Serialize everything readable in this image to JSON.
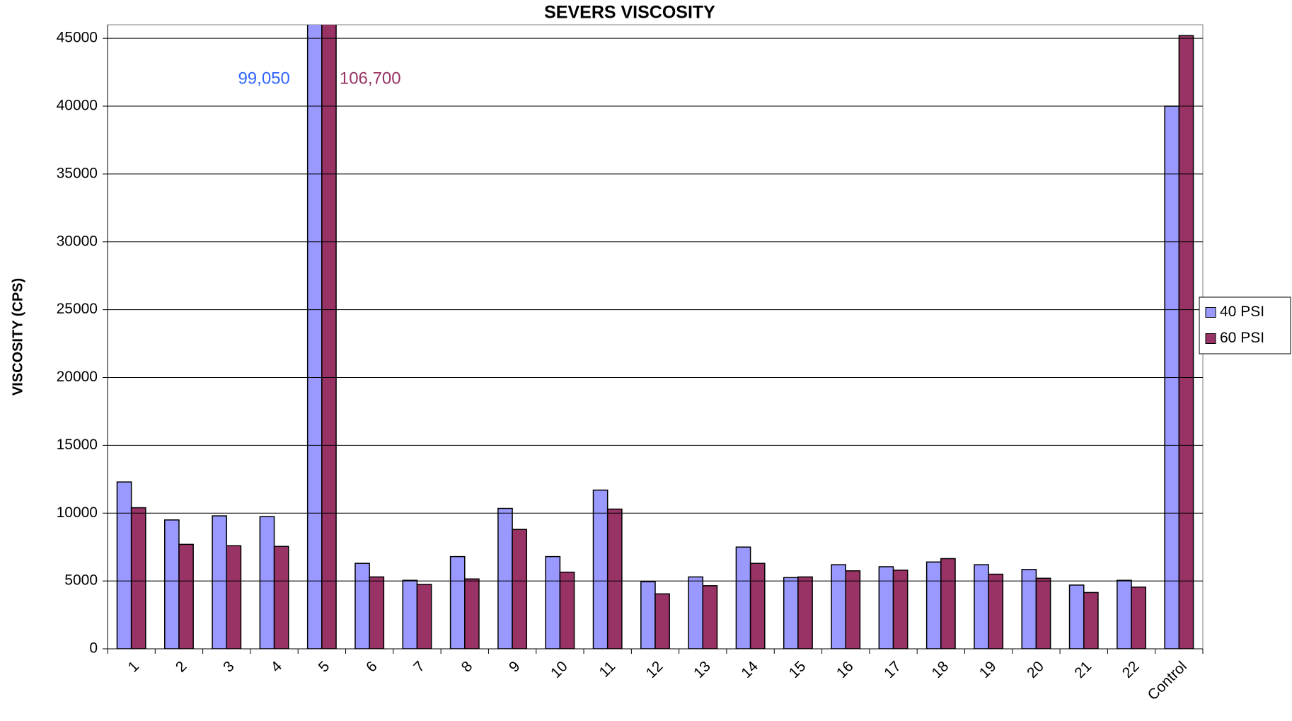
{
  "chart_data": {
    "type": "bar",
    "title": "SEVERS VISCOSITY",
    "y_label": "VISCOSITY (CPS)",
    "categories": [
      "1",
      "2",
      "3",
      "4",
      "5",
      "6",
      "7",
      "8",
      "9",
      "10",
      "11",
      "12",
      "13",
      "14",
      "15",
      "16",
      "17",
      "18",
      "19",
      "20",
      "21",
      "22",
      "Control"
    ],
    "series": [
      {
        "name": "40 PSI",
        "color": "#9999ff",
        "label_color": "#3366ff",
        "values": [
          12300,
          9500,
          9800,
          9750,
          99050,
          6300,
          5050,
          6800,
          10350,
          6800,
          11700,
          4950,
          5300,
          7500,
          5250,
          6200,
          6050,
          6400,
          6200,
          5850,
          4700,
          5050,
          40000
        ],
        "value_labels": [
          null,
          null,
          null,
          null,
          "99,050",
          null,
          null,
          null,
          null,
          null,
          null,
          null,
          null,
          null,
          null,
          null,
          null,
          null,
          null,
          null,
          null,
          null,
          null
        ]
      },
      {
        "name": "60 PSI",
        "color": "#993366",
        "label_color": "#993366",
        "values": [
          10400,
          7700,
          7600,
          7550,
          106700,
          5300,
          4750,
          5150,
          8800,
          5650,
          10300,
          4050,
          4650,
          6300,
          5300,
          5750,
          5800,
          6650,
          5500,
          5200,
          4150,
          4550,
          45200
        ],
        "value_labels": [
          null,
          null,
          null,
          null,
          "106,700",
          null,
          null,
          null,
          null,
          null,
          null,
          null,
          null,
          null,
          null,
          null,
          null,
          null,
          null,
          null,
          null,
          null,
          null
        ]
      }
    ],
    "ylim": [
      0,
      46000
    ],
    "yticks": [
      0,
      5000,
      10000,
      15000,
      20000,
      25000,
      30000,
      35000,
      40000,
      45000
    ],
    "grid": true,
    "legend": "right"
  }
}
